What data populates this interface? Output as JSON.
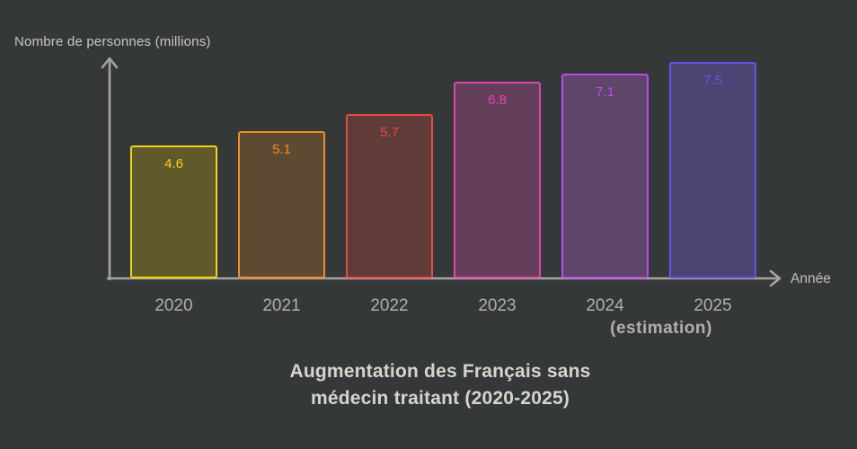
{
  "colors": {
    "background": "#343839",
    "axis": "#a9a39c",
    "tick_label": "#b4aea6",
    "title_text": "#d8d4cd",
    "axis_label_text": "#cdc7bf"
  },
  "chart_data": {
    "type": "bar",
    "categories": [
      "2020",
      "2021",
      "2022",
      "2023",
      "2024",
      "2025"
    ],
    "values": [
      4.6,
      5.1,
      5.7,
      6.8,
      7.1,
      7.5
    ],
    "value_labels": [
      "4.6",
      "5.1",
      "5.7",
      "6.8",
      "7.1",
      "7.5"
    ],
    "bar_stroke_colors": [
      "#f2d411",
      "#ef8d26",
      "#e94a3e",
      "#e246ab",
      "#bd4aeb",
      "#6a51ee"
    ],
    "bar_fill_colors": [
      "#5f592b",
      "#5d4a33",
      "#603c39",
      "#643f5a",
      "#5f4569",
      "#4b4573"
    ],
    "title": "Augmentation des Français sans médecin traitant (2020-2025)",
    "title_lines": [
      "Augmentation des Français sans",
      "médecin traitant (2020-2025)"
    ],
    "xlabel": "Année",
    "ylabel": "Nombre de personnes (millions)",
    "ylim": [
      0,
      8
    ],
    "grid": false,
    "legend": false,
    "annotation": "(estimation)",
    "annotation_target": "2024"
  }
}
